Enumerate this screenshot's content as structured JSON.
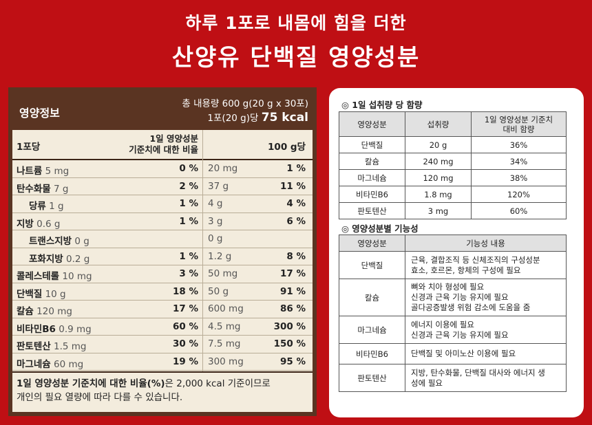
{
  "header": {
    "line1": "하루 1포로 내몸에 힘을 더한",
    "line2": "산양유 단백질 영양성분"
  },
  "nutrition": {
    "label": "영양정보",
    "total": "총 내용량 600 g(20 g x 30포)",
    "per": "1포(20 g)당",
    "kcal": "75 kcal",
    "col_serving": "1포당",
    "col_dv": "1일 영양성분 기준치에 대한 비율",
    "col_dv_line1": "1일 영양성분",
    "col_dv_line2": "기준치에 대한 비율",
    "col_100g": "100 g당",
    "rows": [
      {
        "name": "나트륨",
        "amt": "5 mg",
        "pct": "0 %",
        "amt100": "20 mg",
        "pct100": "1 %"
      },
      {
        "name": "탄수화물",
        "amt": "7 g",
        "pct": "2 %",
        "amt100": "37 g",
        "pct100": "11 %"
      },
      {
        "name": "당류",
        "amt": "1 g",
        "pct": "1 %",
        "amt100": "4 g",
        "pct100": "4 %"
      },
      {
        "name": "지방",
        "amt": "0.6 g",
        "pct": "1 %",
        "amt100": "3 g",
        "pct100": "6 %"
      },
      {
        "name": "트랜스지방",
        "amt": "0 g",
        "pct": "",
        "amt100": "0 g",
        "pct100": ""
      },
      {
        "name": "포화지방",
        "amt": "0.2 g",
        "pct": "1 %",
        "amt100": "1.2 g",
        "pct100": "8 %"
      },
      {
        "name": "콜레스테롤",
        "amt": "10 mg",
        "pct": "3 %",
        "amt100": "50 mg",
        "pct100": "17 %"
      },
      {
        "name": "단백질",
        "amt": "10 g",
        "pct": "18 %",
        "amt100": "50 g",
        "pct100": "91 %"
      },
      {
        "name": "칼슘",
        "amt": "120 mg",
        "pct": "17 %",
        "amt100": "600 mg",
        "pct100": "86 %"
      },
      {
        "name": "비타민B6",
        "amt": "0.9 mg",
        "pct": "60 %",
        "amt100": "4.5 mg",
        "pct100": "300 %"
      },
      {
        "name": "판토텐산",
        "amt": "1.5 mg",
        "pct": "30 %",
        "amt100": "7.5 mg",
        "pct100": "150 %"
      },
      {
        "name": "마그네슘",
        "amt": "60 mg",
        "pct": "19 %",
        "amt100": "300 mg",
        "pct100": "95 %"
      }
    ],
    "foot_bold": "1일 영양성분 기준치에 대한 비율(%)",
    "foot_rest": "은 2,000 kcal 기준이므로",
    "foot_line2": "개인의 필요 열량에 따라 다를 수 있습니다."
  },
  "intake": {
    "title": "◎ 1일 섭취량 당 함량",
    "headers": [
      "영양성분",
      "섭취량",
      "1일 영양성분 기준치",
      "대비 함량"
    ],
    "rows": [
      [
        "단백질",
        "20 g",
        "36%"
      ],
      [
        "칼슘",
        "240 mg",
        "34%"
      ],
      [
        "마그네슘",
        "120 mg",
        "38%"
      ],
      [
        "비타민B6",
        "1.8 mg",
        "120%"
      ],
      [
        "판토텐산",
        "3 mg",
        "60%"
      ]
    ]
  },
  "function": {
    "title": "◎ 영양성분별 기능성",
    "headers": [
      "영양성분",
      "기능성 내용"
    ],
    "rows": [
      {
        "name": "단백질",
        "lines": [
          "근육, 결합조직 등 신체조직의 구성성분",
          "효소, 호르몬, 항체의 구성에 필요"
        ]
      },
      {
        "name": "칼슘",
        "lines": [
          "뼈와 치아 형성에 필요",
          "신경과 근육 기능 유지에 필요",
          "골다공증발생 위험 감소에 도움을 줌"
        ]
      },
      {
        "name": "마그네슘",
        "lines": [
          "에너지 이용에 필요",
          "신경과 근육 기능 유지에 필요"
        ]
      },
      {
        "name": "비타민B6",
        "lines": [
          "단백질 및 아미노산 이용에 필요"
        ]
      },
      {
        "name": "판토텐산",
        "lines": [
          "지방, 탄수화물, 단백질 대사와 에너지 생",
          "성에 필요"
        ]
      }
    ]
  }
}
